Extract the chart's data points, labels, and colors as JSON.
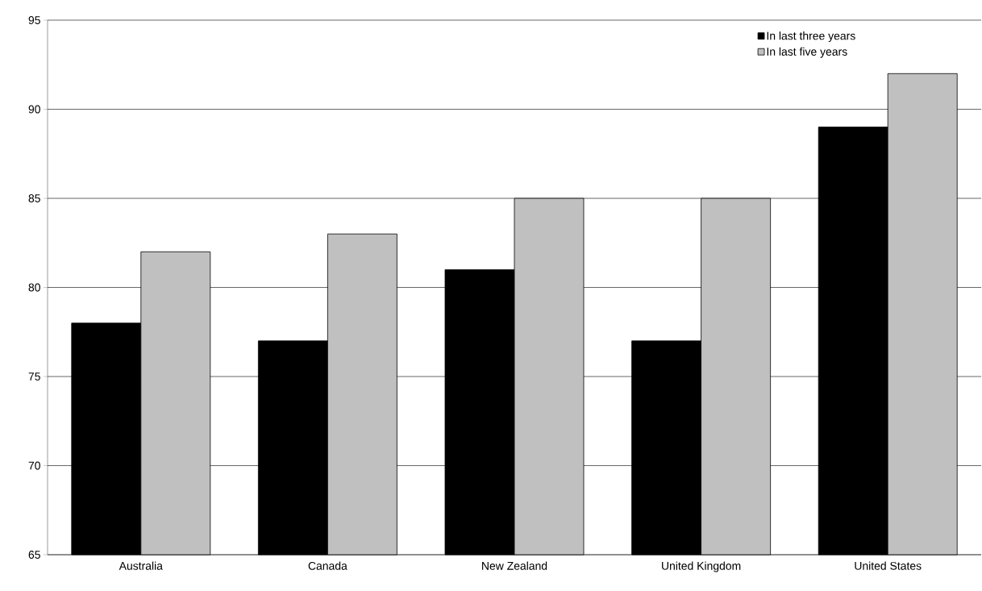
{
  "chart_data": {
    "type": "bar",
    "categories": [
      "Australia",
      "Canada",
      "New Zealand",
      "United Kingdom",
      "United States"
    ],
    "series": [
      {
        "name": "In last three years",
        "color": "#000000",
        "values": [
          78,
          77,
          81,
          77,
          89
        ]
      },
      {
        "name": "In last five years",
        "color": "#c0c0c0",
        "values": [
          82,
          83,
          85,
          85,
          92
        ]
      }
    ],
    "ylim": [
      65,
      95
    ],
    "yticks": [
      65,
      70,
      75,
      80,
      85,
      90,
      95
    ],
    "grid": "y",
    "legend": "top right"
  }
}
